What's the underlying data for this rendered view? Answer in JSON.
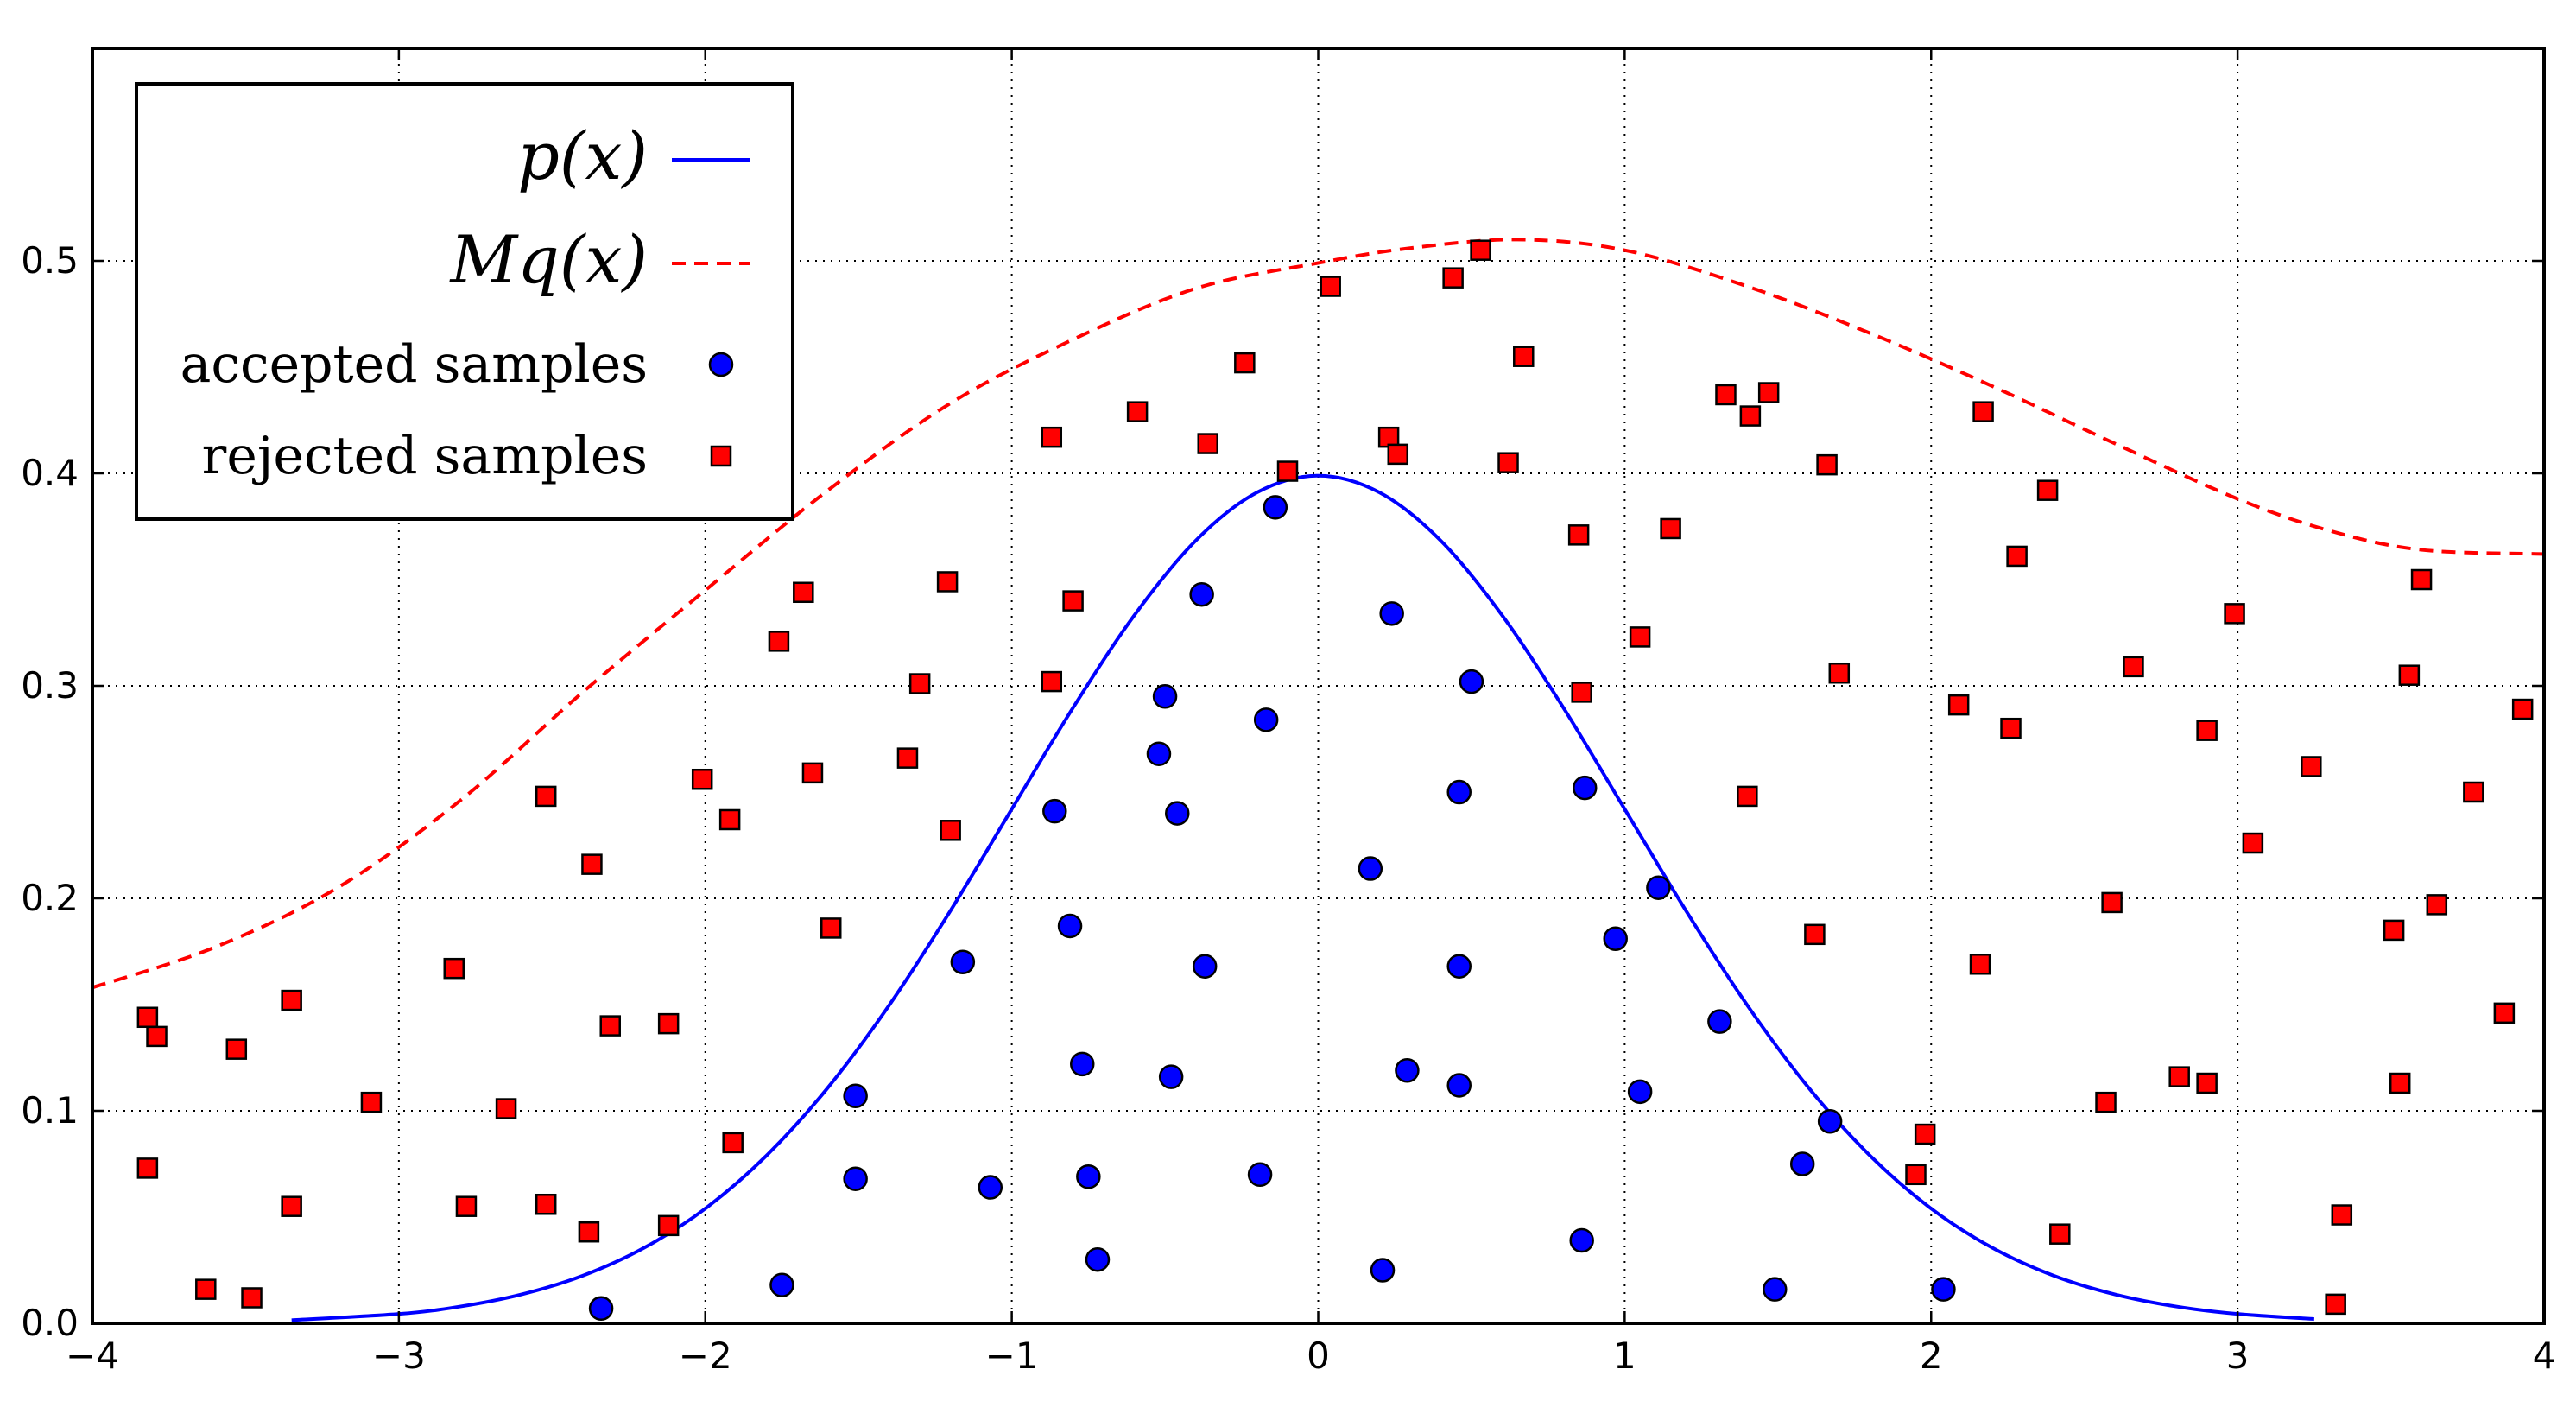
{
  "chart_data": {
    "type": "scatter",
    "title": "",
    "xlabel": "",
    "ylabel": "",
    "xlim": [
      -4,
      4
    ],
    "ylim": [
      0.0,
      0.6
    ],
    "grid": true,
    "grid_style": "dotted",
    "legend_placement": "top-left",
    "x_ticks": [
      -4,
      -3,
      -2,
      -1,
      0,
      1,
      2,
      3,
      4
    ],
    "x_tick_labels": [
      "−4",
      "−3",
      "−2",
      "−1",
      "0",
      "1",
      "2",
      "3",
      "4"
    ],
    "y_ticks": [
      0.0,
      0.1,
      0.2,
      0.3,
      0.4,
      0.5
    ],
    "y_tick_labels": [
      "0.0",
      "0.1",
      "0.2",
      "0.3",
      "0.4",
      "0.5"
    ],
    "colors": {
      "p_curve": "#0000ff",
      "mq_curve": "#ff0000",
      "accepted": "#0000ff",
      "rejected": "#ff0000"
    },
    "series": [
      {
        "name": "p(x)",
        "kind": "line",
        "style": "solid",
        "x": [
          -3.35,
          -3.0,
          -2.8,
          -2.6,
          -2.4,
          -2.2,
          -2.0,
          -1.8,
          -1.6,
          -1.4,
          -1.2,
          -1.0,
          -0.8,
          -0.6,
          -0.4,
          -0.2,
          0.0,
          0.2,
          0.4,
          0.6,
          0.8,
          1.0,
          1.2,
          1.4,
          1.6,
          1.8,
          2.0,
          2.2,
          2.4,
          2.6,
          2.8,
          3.0,
          3.25
        ],
        "y": [
          0.0015,
          0.0044,
          0.0079,
          0.0136,
          0.0224,
          0.0355,
          0.054,
          0.079,
          0.1109,
          0.1497,
          0.1942,
          0.242,
          0.2897,
          0.3332,
          0.3683,
          0.391,
          0.3989,
          0.391,
          0.3683,
          0.3332,
          0.2897,
          0.242,
          0.1942,
          0.1497,
          0.1109,
          0.079,
          0.054,
          0.0355,
          0.0224,
          0.0136,
          0.0079,
          0.0044,
          0.002
        ]
      },
      {
        "name": "Mq(x)",
        "kind": "line",
        "style": "dashed",
        "x": [
          -4.0,
          -3.6,
          -3.2,
          -2.8,
          -2.4,
          -2.0,
          -1.6,
          -1.2,
          -0.8,
          -0.4,
          0.0,
          0.3,
          0.65,
          1.0,
          1.4,
          1.8,
          2.2,
          2.6,
          3.0,
          3.3,
          3.6,
          4.0
        ],
        "y": [
          0.158,
          0.177,
          0.205,
          0.246,
          0.297,
          0.345,
          0.392,
          0.433,
          0.463,
          0.487,
          0.499,
          0.506,
          0.51,
          0.505,
          0.488,
          0.466,
          0.441,
          0.414,
          0.388,
          0.373,
          0.364,
          0.362
        ]
      },
      {
        "name": "accepted samples",
        "kind": "scatter",
        "marker": "circle",
        "x": [
          -0.14,
          0.24,
          -0.38,
          -0.5,
          0.5,
          -0.17,
          -0.52,
          0.46,
          0.87,
          -0.46,
          -0.86,
          0.17,
          1.11,
          -0.81,
          -1.16,
          0.97,
          -0.37,
          0.46,
          1.31,
          -0.77,
          0.29,
          -0.48,
          0.46,
          1.05,
          -1.51,
          1.67,
          1.58,
          -1.51,
          -0.75,
          -0.19,
          -1.07,
          0.86,
          -0.72,
          0.21,
          -1.75,
          1.49,
          2.04,
          -2.34
        ],
        "y": [
          0.384,
          0.334,
          0.343,
          0.295,
          0.302,
          0.284,
          0.268,
          0.25,
          0.252,
          0.24,
          0.241,
          0.214,
          0.205,
          0.187,
          0.17,
          0.181,
          0.168,
          0.168,
          0.142,
          0.122,
          0.119,
          0.116,
          0.112,
          0.109,
          0.107,
          0.095,
          0.075,
          0.068,
          0.069,
          0.07,
          0.064,
          0.039,
          0.03,
          0.025,
          0.018,
          0.016,
          0.016,
          0.007
        ]
      },
      {
        "name": "rejected samples",
        "kind": "scatter",
        "marker": "square",
        "x": [
          0.53,
          0.04,
          0.44,
          0.67,
          -0.24,
          1.33,
          1.47,
          -0.59,
          1.41,
          2.17,
          -0.87,
          0.23,
          -0.36,
          0.26,
          0.62,
          1.66,
          -0.1,
          2.38,
          1.15,
          0.85,
          2.28,
          3.6,
          -1.21,
          -1.68,
          -0.8,
          2.99,
          -1.76,
          1.05,
          2.66,
          1.7,
          3.56,
          -1.3,
          -0.87,
          0.86,
          2.09,
          3.93,
          2.26,
          2.9,
          -1.34,
          3.24,
          -1.65,
          -2.01,
          3.77,
          -2.52,
          1.4,
          -1.92,
          -1.2,
          3.05,
          -2.37,
          2.59,
          3.65,
          -1.59,
          3.51,
          1.62,
          2.16,
          -2.82,
          3.87,
          -3.35,
          -3.82,
          -2.31,
          -2.12,
          -3.79,
          -3.53,
          2.81,
          2.9,
          3.53,
          2.57,
          -3.09,
          -2.65,
          1.98,
          -1.91,
          -3.82,
          1.95,
          -2.52,
          -2.78,
          -3.35,
          3.34,
          -2.12,
          2.42,
          -2.38,
          -3.63,
          -3.48,
          3.32
        ],
        "y": [
          0.505,
          0.488,
          0.492,
          0.455,
          0.452,
          0.437,
          0.438,
          0.429,
          0.427,
          0.429,
          0.417,
          0.417,
          0.414,
          0.409,
          0.405,
          0.404,
          0.401,
          0.392,
          0.374,
          0.371,
          0.361,
          0.35,
          0.349,
          0.344,
          0.34,
          0.334,
          0.321,
          0.323,
          0.309,
          0.306,
          0.305,
          0.301,
          0.302,
          0.297,
          0.291,
          0.289,
          0.28,
          0.279,
          0.266,
          0.262,
          0.259,
          0.256,
          0.25,
          0.248,
          0.248,
          0.237,
          0.232,
          0.226,
          0.216,
          0.198,
          0.197,
          0.186,
          0.185,
          0.183,
          0.169,
          0.167,
          0.146,
          0.152,
          0.144,
          0.14,
          0.141,
          0.135,
          0.129,
          0.116,
          0.113,
          0.113,
          0.104,
          0.104,
          0.101,
          0.089,
          0.085,
          0.073,
          0.07,
          0.056,
          0.055,
          0.055,
          0.051,
          0.046,
          0.042,
          0.043,
          0.016,
          0.012,
          0.009
        ]
      }
    ],
    "legend": [
      {
        "label": "p(x)",
        "marker": "line-solid",
        "color": "#0000ff"
      },
      {
        "label": "Mq(x)",
        "marker": "line-dashed",
        "color": "#ff0000"
      },
      {
        "label": "accepted samples",
        "marker": "circle",
        "color": "#0000ff"
      },
      {
        "label": "rejected samples",
        "marker": "square",
        "color": "#ff0000"
      }
    ]
  }
}
